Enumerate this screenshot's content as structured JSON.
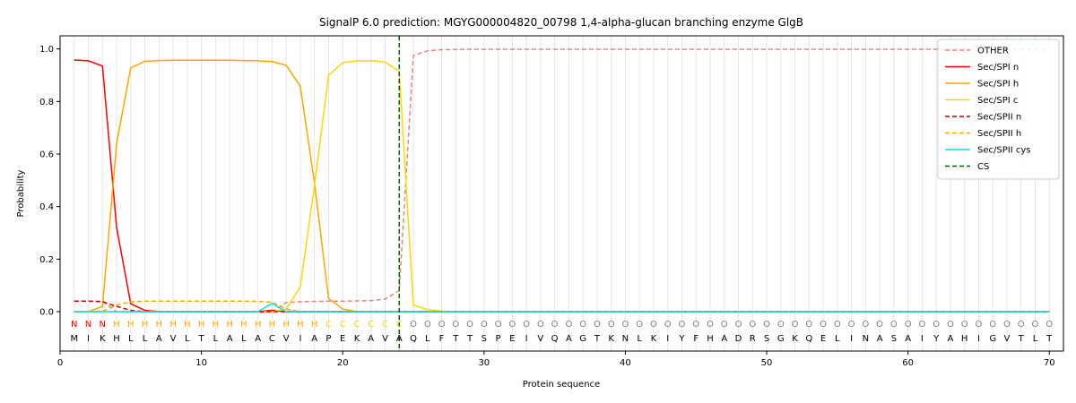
{
  "chart_data": {
    "type": "line",
    "title": "SignalP 6.0 prediction: MGYG000004820_00798 1,4-alpha-glucan branching enzyme GlgB",
    "xlabel": "Protein sequence",
    "ylabel": "Probability",
    "xlim": [
      0,
      71
    ],
    "ylim": [
      -0.15,
      1.05
    ],
    "xticks": [
      0,
      10,
      20,
      30,
      40,
      50,
      60,
      70
    ],
    "yticks": [
      0.0,
      0.2,
      0.4,
      0.6,
      0.8,
      1.0
    ],
    "xtick_labels": [
      "0",
      "10",
      "20",
      "30",
      "40",
      "50",
      "60",
      "70"
    ],
    "ytick_labels": [
      "0.0",
      "0.2",
      "0.4",
      "0.6",
      "0.8",
      "1.0"
    ],
    "legend_position": "top-right",
    "sequence": [
      "M",
      "I",
      "K",
      "H",
      "L",
      "L",
      "A",
      "V",
      "L",
      "T",
      "L",
      "A",
      "L",
      "A",
      "C",
      "V",
      "I",
      "A",
      "P",
      "E",
      "K",
      "A",
      "V",
      "A",
      "Q",
      "L",
      "F",
      "T",
      "T",
      "S",
      "P",
      "E",
      "I",
      "V",
      "Q",
      "A",
      "G",
      "T",
      "K",
      "N",
      "L",
      "K",
      "I",
      "Y",
      "F",
      "H",
      "A",
      "D",
      "R",
      "S",
      "G",
      "K",
      "Q",
      "E",
      "L",
      "I",
      "N",
      "A",
      "S",
      "A",
      "I",
      "Y",
      "A",
      "H",
      "I",
      "G",
      "V",
      "T",
      "L",
      "T"
    ],
    "region_labels": [
      "N",
      "N",
      "N",
      "H",
      "H",
      "H",
      "H",
      "H",
      "H",
      "H",
      "H",
      "H",
      "H",
      "H",
      "H",
      "H",
      "H",
      "H",
      "C",
      "C",
      "C",
      "C",
      "C",
      "C",
      "O",
      "O",
      "O",
      "O",
      "O",
      "O",
      "O",
      "O",
      "O",
      "O",
      "O",
      "O",
      "O",
      "O",
      "O",
      "O",
      "O",
      "O",
      "O",
      "O",
      "O",
      "O",
      "O",
      "O",
      "O",
      "O",
      "O",
      "O",
      "O",
      "O",
      "O",
      "O",
      "O",
      "O",
      "O",
      "O",
      "O",
      "O",
      "O",
      "O",
      "O",
      "O",
      "O",
      "O",
      "O",
      "O"
    ],
    "region_colors": {
      "N": "#ff0000",
      "H": "#ffa500",
      "C": "#ffd700",
      "O": "#808080"
    },
    "x": [
      1,
      2,
      3,
      4,
      5,
      6,
      7,
      8,
      9,
      10,
      11,
      12,
      13,
      14,
      15,
      16,
      17,
      18,
      19,
      20,
      21,
      22,
      23,
      24,
      25,
      26,
      27,
      28,
      29,
      30,
      31,
      32,
      33,
      34,
      35,
      36,
      37,
      38,
      39,
      40,
      41,
      42,
      43,
      44,
      45,
      46,
      47,
      48,
      49,
      50,
      51,
      52,
      53,
      54,
      55,
      56,
      57,
      58,
      59,
      60,
      61,
      62,
      63,
      64,
      65,
      66,
      67,
      68,
      69,
      70
    ],
    "cs_position": 24,
    "cs_label": "CS",
    "cs_color": "#006400",
    "series": [
      {
        "name": "OTHER",
        "color": "#f08080",
        "dash": "dashed",
        "values": [
          0.04,
          0.04,
          0.04,
          0.0,
          0.0,
          0.0,
          0.0,
          0.0,
          0.0,
          0.0,
          0.0,
          0.0,
          0.0,
          0.0,
          0.0,
          0.035,
          0.038,
          0.039,
          0.04,
          0.04,
          0.041,
          0.042,
          0.048,
          0.08,
          0.975,
          0.993,
          0.997,
          0.998,
          0.999,
          0.999,
          0.999,
          0.999,
          0.999,
          0.999,
          0.999,
          0.999,
          0.999,
          0.999,
          0.999,
          0.999,
          0.999,
          0.999,
          0.999,
          0.999,
          0.999,
          0.999,
          0.999,
          0.999,
          0.999,
          0.999,
          0.999,
          0.999,
          0.999,
          0.999,
          0.999,
          0.999,
          0.999,
          0.999,
          0.999,
          0.999,
          0.999,
          0.999,
          0.999,
          0.999,
          0.999,
          0.999,
          0.999,
          0.999,
          0.999,
          0.999
        ]
      },
      {
        "name": "Sec/SPI n",
        "color": "#ff0000",
        "dash": "solid",
        "values": [
          0.958,
          0.955,
          0.935,
          0.32,
          0.03,
          0.005,
          0.0,
          0.0,
          0.0,
          0.0,
          0.0,
          0.0,
          0.0,
          0.0,
          0.005,
          0.0,
          0.0,
          0.0,
          0.0,
          0.0,
          0.0,
          0.0,
          0.0,
          0.0,
          0.0,
          0.0,
          0.0,
          0.0,
          0.0,
          0.0,
          0.0,
          0.0,
          0.0,
          0.0,
          0.0,
          0.0,
          0.0,
          0.0,
          0.0,
          0.0,
          0.0,
          0.0,
          0.0,
          0.0,
          0.0,
          0.0,
          0.0,
          0.0,
          0.0,
          0.0,
          0.0,
          0.0,
          0.0,
          0.0,
          0.0,
          0.0,
          0.0,
          0.0,
          0.0,
          0.0,
          0.0,
          0.0,
          0.0,
          0.0,
          0.0,
          0.0,
          0.0,
          0.0,
          0.0,
          0.0
        ]
      },
      {
        "name": "Sec/SPI h",
        "color": "#ffa500",
        "dash": "solid",
        "values": [
          0.0,
          0.0,
          0.02,
          0.64,
          0.928,
          0.953,
          0.956,
          0.957,
          0.957,
          0.957,
          0.957,
          0.957,
          0.956,
          0.955,
          0.952,
          0.938,
          0.858,
          0.49,
          0.05,
          0.01,
          0.0,
          0.0,
          0.0,
          0.0,
          0.0,
          0.0,
          0.0,
          0.0,
          0.0,
          0.0,
          0.0,
          0.0,
          0.0,
          0.0,
          0.0,
          0.0,
          0.0,
          0.0,
          0.0,
          0.0,
          0.0,
          0.0,
          0.0,
          0.0,
          0.0,
          0.0,
          0.0,
          0.0,
          0.0,
          0.0,
          0.0,
          0.0,
          0.0,
          0.0,
          0.0,
          0.0,
          0.0,
          0.0,
          0.0,
          0.0,
          0.0,
          0.0,
          0.0,
          0.0,
          0.0,
          0.0,
          0.0,
          0.0,
          0.0,
          0.0
        ]
      },
      {
        "name": "Sec/SPI c",
        "color": "#ffd700",
        "dash": "solid",
        "values": [
          0.0,
          0.0,
          0.0,
          0.0,
          0.0,
          0.0,
          0.0,
          0.0,
          0.0,
          0.0,
          0.0,
          0.0,
          0.0,
          0.0,
          0.0,
          0.01,
          0.095,
          0.48,
          0.9,
          0.948,
          0.955,
          0.956,
          0.95,
          0.915,
          0.025,
          0.008,
          0.002,
          0.0,
          0.0,
          0.0,
          0.0,
          0.0,
          0.0,
          0.0,
          0.0,
          0.0,
          0.0,
          0.0,
          0.0,
          0.0,
          0.0,
          0.0,
          0.0,
          0.0,
          0.0,
          0.0,
          0.0,
          0.0,
          0.0,
          0.0,
          0.0,
          0.0,
          0.0,
          0.0,
          0.0,
          0.0,
          0.0,
          0.0,
          0.0,
          0.0,
          0.0,
          0.0,
          0.0,
          0.0,
          0.0,
          0.0,
          0.0,
          0.0,
          0.0,
          0.0
        ]
      },
      {
        "name": "Sec/SPII n",
        "color": "#cc0000",
        "dash": "dashed",
        "values": [
          0.04,
          0.04,
          0.038,
          0.02,
          0.005,
          0.0,
          0.0,
          0.0,
          0.0,
          0.0,
          0.0,
          0.0,
          0.0,
          0.0,
          0.0,
          0.0,
          0.0,
          0.0,
          0.0,
          0.0,
          0.0,
          0.0,
          0.0,
          0.0,
          0.0,
          0.0,
          0.0,
          0.0,
          0.0,
          0.0,
          0.0,
          0.0,
          0.0,
          0.0,
          0.0,
          0.0,
          0.0,
          0.0,
          0.0,
          0.0,
          0.0,
          0.0,
          0.0,
          0.0,
          0.0,
          0.0,
          0.0,
          0.0,
          0.0,
          0.0,
          0.0,
          0.0,
          0.0,
          0.0,
          0.0,
          0.0,
          0.0,
          0.0,
          0.0,
          0.0,
          0.0,
          0.0,
          0.0,
          0.0,
          0.0,
          0.0,
          0.0,
          0.0,
          0.0,
          0.0
        ]
      },
      {
        "name": "Sec/SPII h",
        "color": "#ffa500",
        "dash": "dashed",
        "values": [
          0.0,
          0.0,
          0.002,
          0.025,
          0.038,
          0.04,
          0.04,
          0.04,
          0.04,
          0.04,
          0.04,
          0.04,
          0.04,
          0.039,
          0.036,
          0.01,
          0.0,
          0.0,
          0.0,
          0.0,
          0.0,
          0.0,
          0.0,
          0.0,
          0.0,
          0.0,
          0.0,
          0.0,
          0.0,
          0.0,
          0.0,
          0.0,
          0.0,
          0.0,
          0.0,
          0.0,
          0.0,
          0.0,
          0.0,
          0.0,
          0.0,
          0.0,
          0.0,
          0.0,
          0.0,
          0.0,
          0.0,
          0.0,
          0.0,
          0.0,
          0.0,
          0.0,
          0.0,
          0.0,
          0.0,
          0.0,
          0.0,
          0.0,
          0.0,
          0.0,
          0.0,
          0.0,
          0.0,
          0.0,
          0.0,
          0.0,
          0.0,
          0.0,
          0.0,
          0.0
        ]
      },
      {
        "name": "Sec/SPII cys",
        "color": "#00e5ee",
        "dash": "solid",
        "values": [
          0.0,
          0.0,
          0.0,
          0.0,
          0.0,
          0.0,
          0.0,
          0.0,
          0.0,
          0.0,
          0.0,
          0.0,
          0.0,
          0.0,
          0.032,
          0.0,
          0.0,
          0.0,
          0.0,
          0.0,
          0.0,
          0.0,
          0.0,
          0.0,
          0.0,
          0.0,
          0.0,
          0.0,
          0.0,
          0.0,
          0.0,
          0.0,
          0.0,
          0.0,
          0.0,
          0.0,
          0.0,
          0.0,
          0.0,
          0.0,
          0.0,
          0.0,
          0.0,
          0.0,
          0.0,
          0.0,
          0.0,
          0.0,
          0.0,
          0.0,
          0.0,
          0.0,
          0.0,
          0.0,
          0.0,
          0.0,
          0.0,
          0.0,
          0.0,
          0.0,
          0.0,
          0.0,
          0.0,
          0.0,
          0.0,
          0.0,
          0.0,
          0.0,
          0.0,
          0.0
        ]
      }
    ]
  }
}
